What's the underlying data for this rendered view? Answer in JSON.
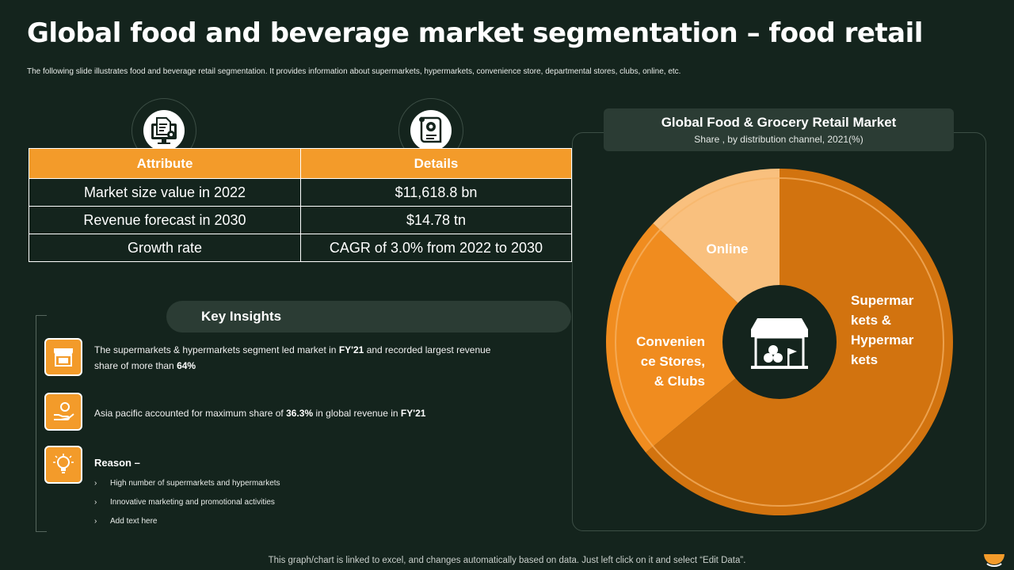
{
  "page": {
    "title": "Global food and beverage market segmentation – food retail",
    "subtitle": "The following slide illustrates food and beverage retail segmentation. It provides information about supermarkets, hypermarkets, convenience store, departmental stores, clubs, online, etc."
  },
  "table": {
    "headers": [
      "Attribute",
      "Details"
    ],
    "rows": [
      [
        "Market size value in 2022",
        "$11,618.8 bn"
      ],
      [
        "Revenue forecast in 2030",
        "$14.78 tn"
      ],
      [
        "Growth rate",
        "CAGR of 3.0% from 2022 to 2030"
      ]
    ]
  },
  "insights": {
    "title": "Key Insights",
    "item1_pre": "The supermarkets & hypermarkets segment led market in",
    "item1_b1": "FY'21",
    "item1_mid": "and recorded largest revenue share of more than",
    "item1_b2": "64%",
    "item2_pre": "Asia pacific accounted for maximum share of",
    "item2_b1": "36.3%",
    "item2_mid": "in global revenue in",
    "item2_b2": "FY'21",
    "reason_title": "Reason –",
    "bullets": [
      "High number of supermarkets and hypermarkets",
      "Innovative marketing and promotional activities",
      "Add text here"
    ],
    "bullet_marker": "›"
  },
  "chart_data": {
    "type": "pie",
    "title": "Global Food & Grocery Retail Market",
    "subtitle": "Share , by distribution channel, 2021(%)",
    "labels": [
      "Supermarkets & Hypermarkets",
      "Convenience Stores, & Clubs",
      "Online"
    ],
    "display_labels": [
      [
        "Supermar",
        "kets &",
        "Hypermar",
        "kets"
      ],
      [
        "Convenien",
        "ce Stores,",
        "& Clubs"
      ],
      [
        "Online"
      ]
    ],
    "values": [
      64,
      23,
      13
    ],
    "colors": [
      "#d2730f",
      "#f08c1f",
      "#f9c07e"
    ]
  },
  "footer": "This graph/chart is linked to excel, and changes automatically based on data. Just left click on it and select “Edit Data”.",
  "icons": {
    "top_left": "monitor-document-gear-icon",
    "top_right": "scroll-document-icon",
    "insight1": "storefront-icon",
    "insight2": "hand-coin-icon",
    "insight3": "lightbulb-icon",
    "pie_center": "market-stall-icon"
  },
  "colors": {
    "accent": "#f39b2a",
    "background": "#14241d",
    "panel": "#2b3c34"
  }
}
